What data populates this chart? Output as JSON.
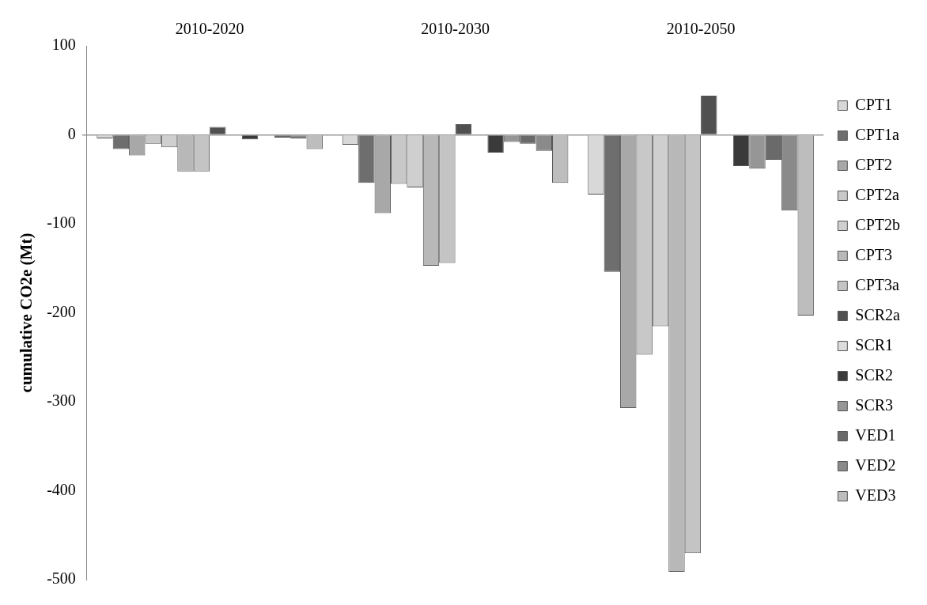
{
  "chart_data": {
    "type": "bar",
    "ylabel": "cumulative CO2e (Mt)",
    "categories": [
      "2010-2020",
      "2010-2030",
      "2010-2050"
    ],
    "series": [
      {
        "name": "CPT1",
        "color": "#d8d8d8",
        "values": [
          -4,
          -11,
          -67
        ]
      },
      {
        "name": "CPT1a",
        "color": "#6e6e6e",
        "values": [
          -16,
          -54,
          -154
        ]
      },
      {
        "name": "CPT2",
        "color": "#a8a8a8",
        "values": [
          -23,
          -88,
          -307
        ]
      },
      {
        "name": "CPT2a",
        "color": "#c8c8c8",
        "values": [
          -10,
          -55,
          -247
        ]
      },
      {
        "name": "CPT2b",
        "color": "#cfcfcf",
        "values": [
          -14,
          -59,
          -215
        ]
      },
      {
        "name": "CPT3",
        "color": "#b8b8b8",
        "values": [
          -41,
          -147,
          -491
        ]
      },
      {
        "name": "CPT3a",
        "color": "#c4c4c4",
        "values": [
          -41,
          -144,
          -470
        ]
      },
      {
        "name": "SCR2a",
        "color": "#505050",
        "values": [
          9,
          12,
          44
        ]
      },
      {
        "name": "SCR1",
        "color": "#dcdcdc",
        "values": [
          0,
          0,
          0
        ]
      },
      {
        "name": "SCR2",
        "color": "#3a3a3a",
        "values": [
          -5,
          -20,
          -35
        ]
      },
      {
        "name": "SCR3",
        "color": "#969696",
        "values": [
          0,
          -8,
          -38
        ]
      },
      {
        "name": "VED1",
        "color": "#6a6a6a",
        "values": [
          -3,
          -10,
          -28
        ]
      },
      {
        "name": "VED2",
        "color": "#8a8a8a",
        "values": [
          -4,
          -18,
          -85
        ]
      },
      {
        "name": "VED3",
        "color": "#bdbdbd",
        "values": [
          -16,
          -54,
          -203
        ]
      }
    ],
    "ylim": [
      -500,
      100
    ],
    "yticks": [
      -500,
      -400,
      -300,
      -200,
      -100,
      0,
      100
    ],
    "legend": "right"
  }
}
